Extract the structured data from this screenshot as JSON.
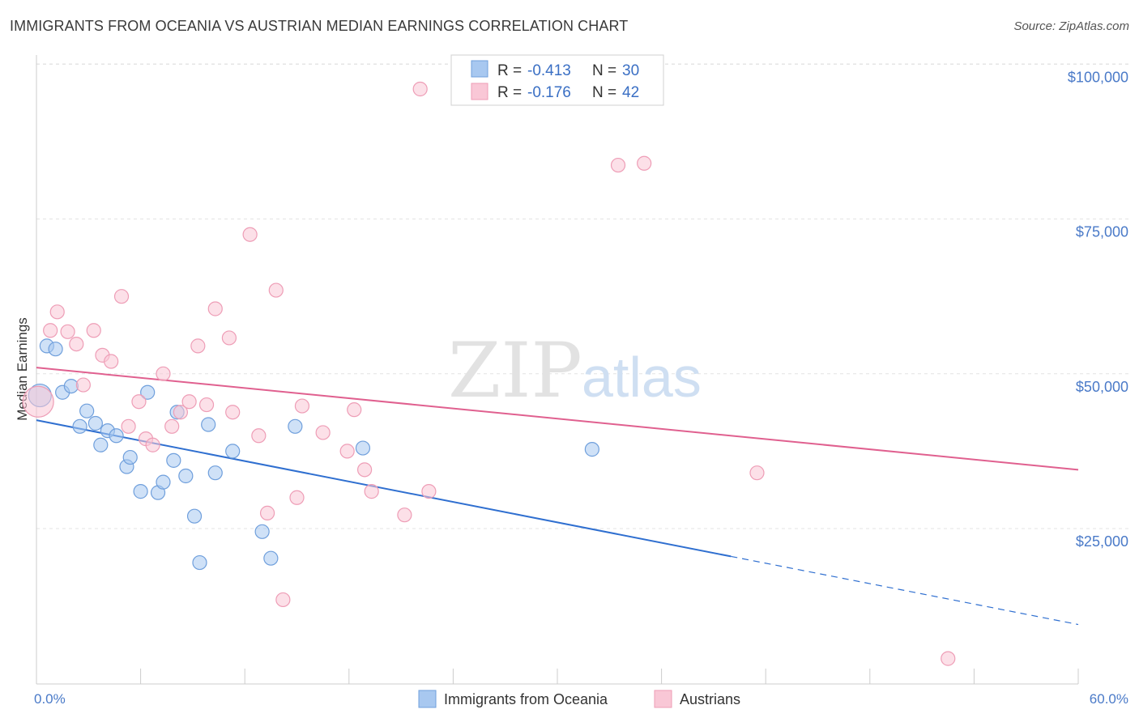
{
  "title": "IMMIGRANTS FROM OCEANIA VS AUSTRIAN MEDIAN EARNINGS CORRELATION CHART",
  "source": "Source: ZipAtlas.com",
  "watermark": {
    "zip": "ZIP",
    "atlas": "atlas"
  },
  "chart_data": {
    "type": "scatter",
    "xlabel": "",
    "ylabel": "Median Earnings",
    "xlim": [
      0,
      60
    ],
    "ylim": [
      0,
      105000
    ],
    "x_tick_labels": {
      "left": "0.0%",
      "right": "60.0%"
    },
    "y_ticks": [
      {
        "value": 25000,
        "label": "$25,000"
      },
      {
        "value": 50000,
        "label": "$50,000"
      },
      {
        "value": 75000,
        "label": "$75,000"
      },
      {
        "value": 100000,
        "label": "$100,000"
      }
    ],
    "legend": {
      "items": [
        {
          "r_label": "R =",
          "r_value": "-0.413",
          "n_label": "N =",
          "n_value": "30"
        },
        {
          "r_label": "R =",
          "r_value": "-0.176",
          "n_label": "N =",
          "n_value": "42"
        }
      ]
    },
    "series": [
      {
        "name": "Immigrants from Oceania",
        "color": "#a8c8f0",
        "stroke": "#6f9fdc",
        "line_color": "#2f6fd0",
        "trend": {
          "x0": 0,
          "y0": 42500,
          "x1": 40,
          "y1": 20500,
          "dash_to_x": 60,
          "dash_to_y": 9500
        },
        "points": [
          [
            0.2,
            46500
          ],
          [
            0.6,
            54500
          ],
          [
            1.1,
            54000
          ],
          [
            1.5,
            47000
          ],
          [
            2.0,
            48000
          ],
          [
            2.5,
            41500
          ],
          [
            2.9,
            44000
          ],
          [
            3.4,
            42000
          ],
          [
            3.7,
            38500
          ],
          [
            4.1,
            40800
          ],
          [
            4.6,
            40000
          ],
          [
            5.2,
            35000
          ],
          [
            5.4,
            36500
          ],
          [
            6.0,
            31000
          ],
          [
            6.4,
            47000
          ],
          [
            7.0,
            30800
          ],
          [
            7.3,
            32500
          ],
          [
            7.9,
            36000
          ],
          [
            8.1,
            43800
          ],
          [
            8.6,
            33500
          ],
          [
            9.1,
            27000
          ],
          [
            9.4,
            19500
          ],
          [
            9.9,
            41800
          ],
          [
            10.3,
            34000
          ],
          [
            11.3,
            37500
          ],
          [
            13.0,
            24500
          ],
          [
            13.5,
            20200
          ],
          [
            14.9,
            41500
          ],
          [
            18.8,
            38000
          ],
          [
            32.0,
            37800
          ]
        ]
      },
      {
        "name": "Austrians",
        "color": "#f9c7d6",
        "stroke": "#ee9db6",
        "line_color": "#e0608f",
        "trend": {
          "x0": 0,
          "y0": 51000,
          "x1": 60,
          "y1": 34500
        },
        "points": [
          [
            0.1,
            45500
          ],
          [
            0.8,
            57000
          ],
          [
            1.2,
            60000
          ],
          [
            1.8,
            56800
          ],
          [
            2.3,
            54800
          ],
          [
            2.7,
            48200
          ],
          [
            3.3,
            57000
          ],
          [
            3.8,
            53000
          ],
          [
            4.3,
            52000
          ],
          [
            4.9,
            62500
          ],
          [
            5.3,
            41500
          ],
          [
            5.9,
            45500
          ],
          [
            6.3,
            39500
          ],
          [
            6.7,
            38500
          ],
          [
            7.3,
            50000
          ],
          [
            7.8,
            41500
          ],
          [
            8.3,
            43800
          ],
          [
            8.8,
            45500
          ],
          [
            9.3,
            54500
          ],
          [
            9.8,
            45000
          ],
          [
            10.3,
            60500
          ],
          [
            11.1,
            55800
          ],
          [
            11.3,
            43800
          ],
          [
            12.3,
            72500
          ],
          [
            12.8,
            40000
          ],
          [
            13.3,
            27500
          ],
          [
            13.8,
            63500
          ],
          [
            14.2,
            13500
          ],
          [
            15.0,
            30000
          ],
          [
            15.3,
            44800
          ],
          [
            16.5,
            40500
          ],
          [
            17.9,
            37500
          ],
          [
            18.3,
            44200
          ],
          [
            18.9,
            34500
          ],
          [
            19.3,
            31000
          ],
          [
            21.2,
            27200
          ],
          [
            22.1,
            96000
          ],
          [
            22.6,
            31000
          ],
          [
            33.5,
            83700
          ],
          [
            35.0,
            84000
          ],
          [
            41.5,
            34000
          ],
          [
            52.5,
            4000
          ]
        ]
      }
    ]
  }
}
